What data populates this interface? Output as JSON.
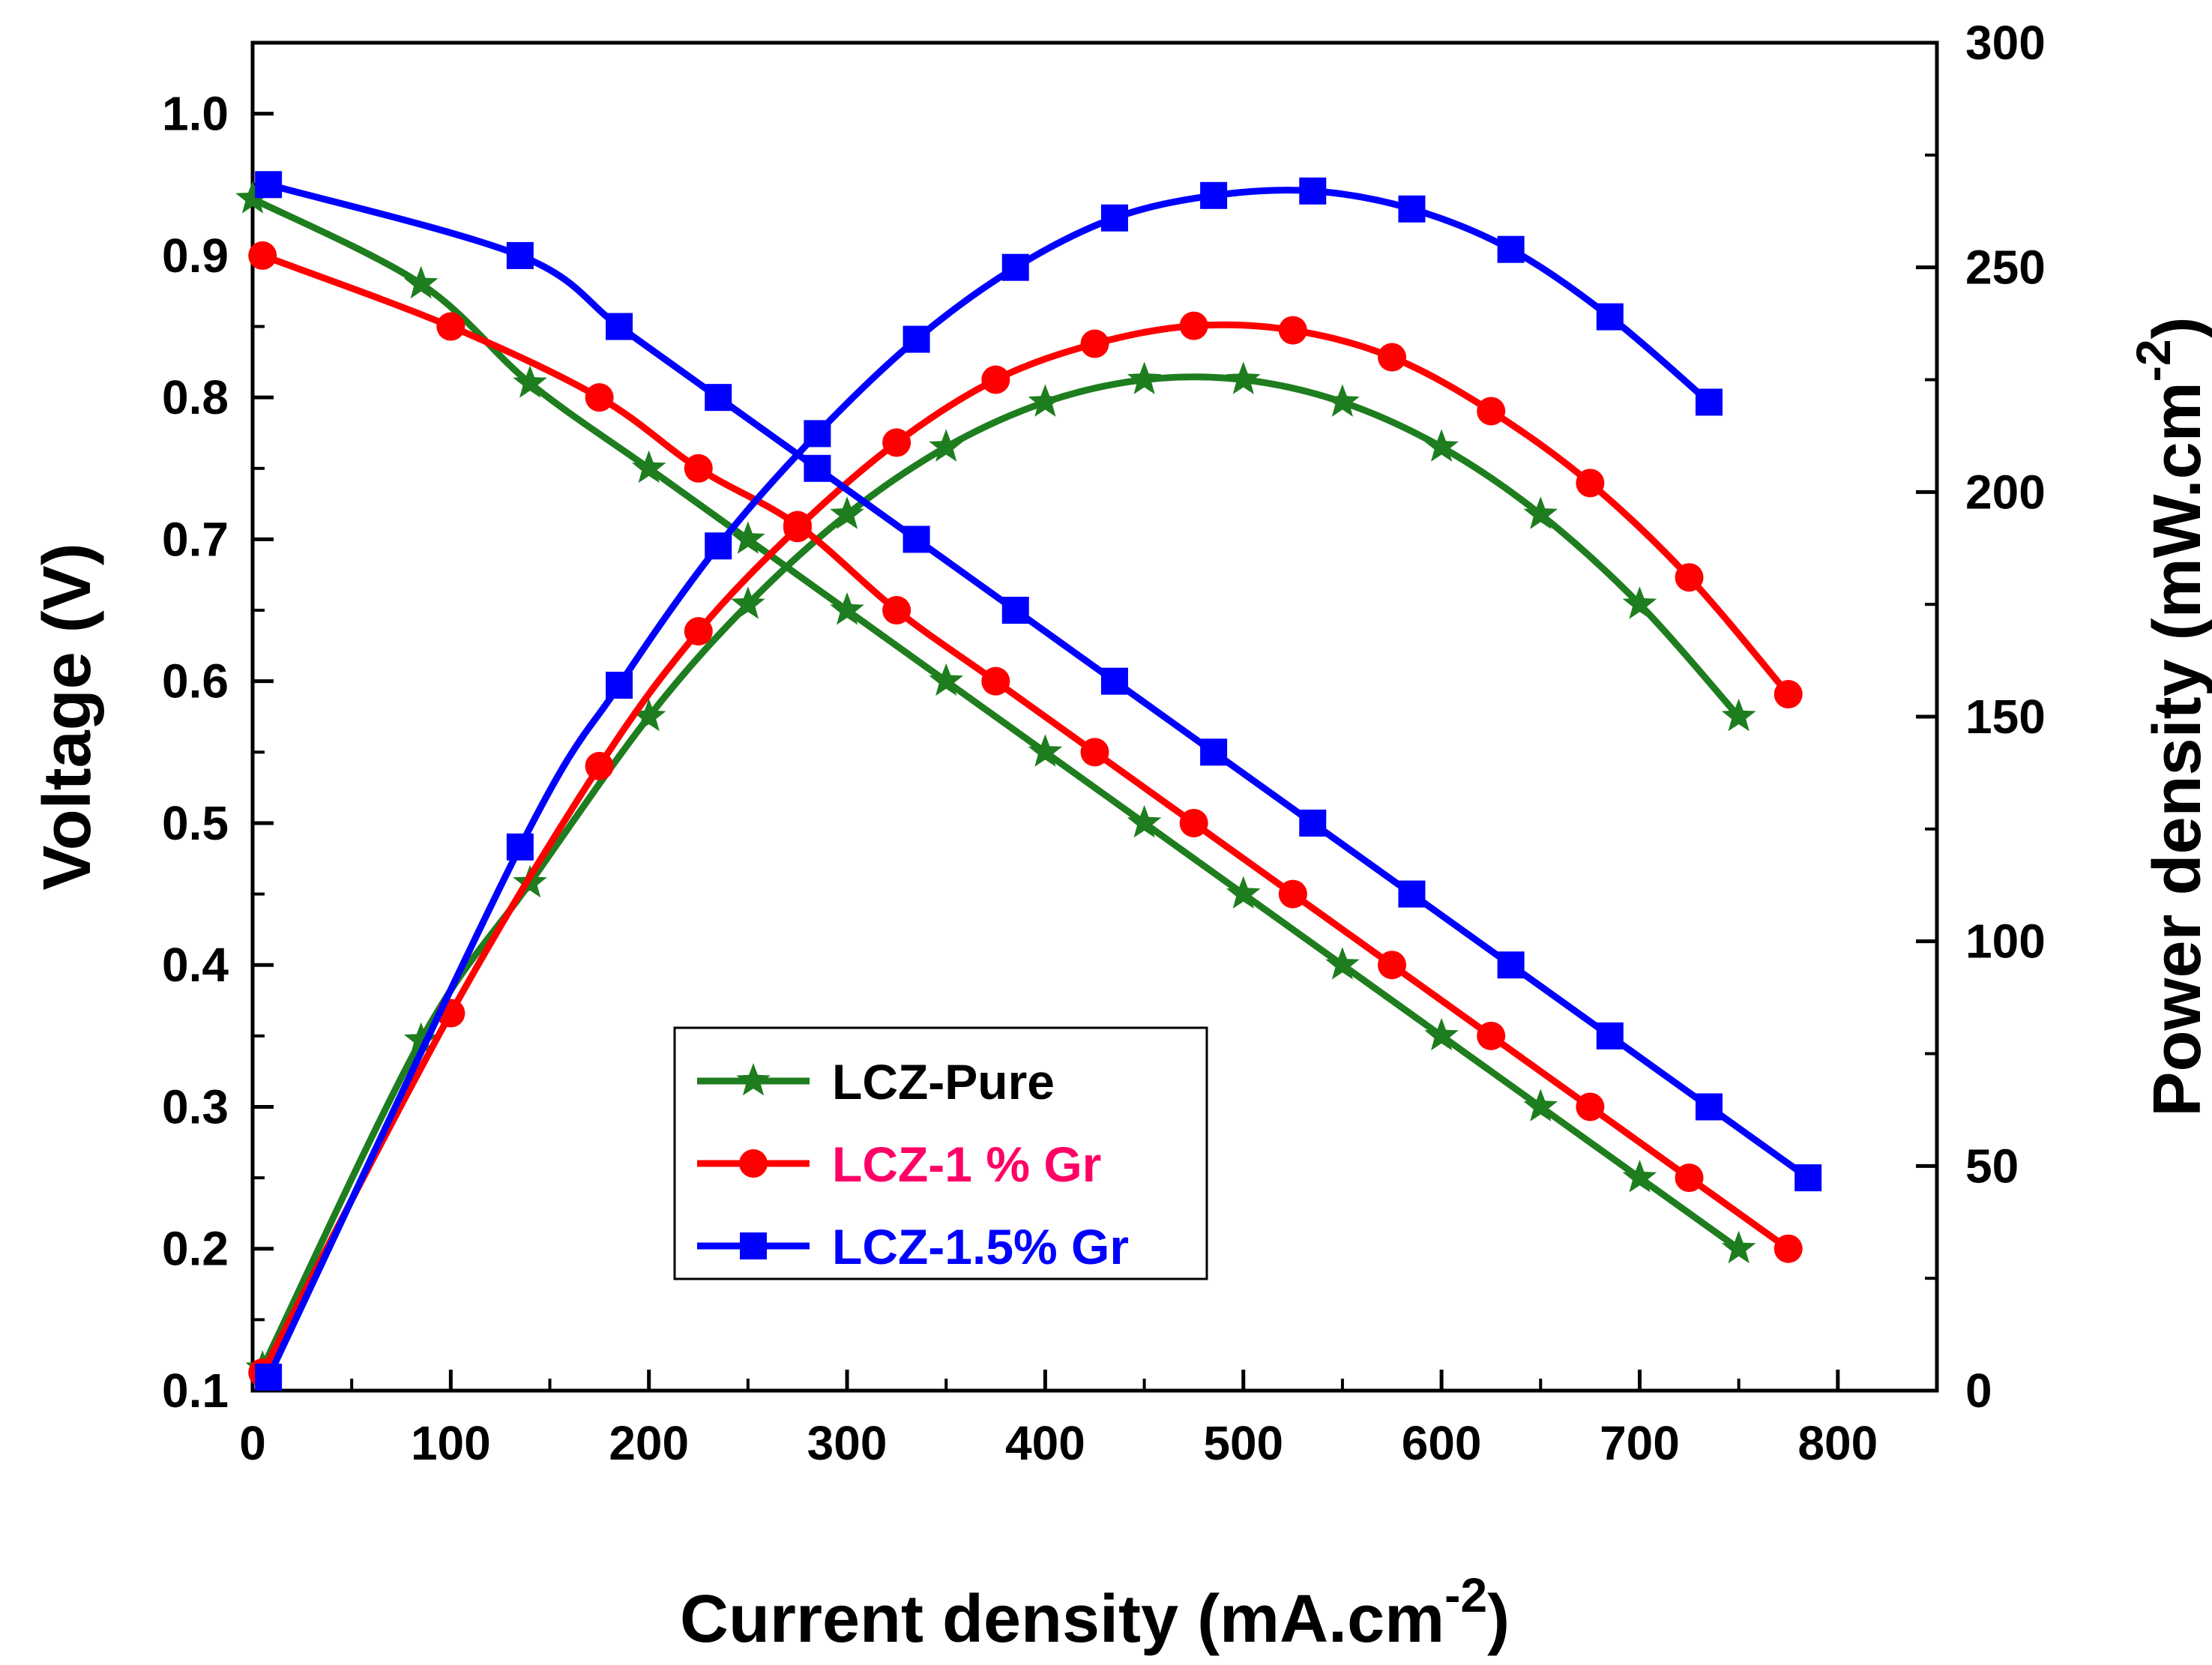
{
  "chart_data": {
    "type": "line",
    "xlabel": "Current density (mA.cm",
    "xlabel_sup": "-2",
    "xlabel_end": ")",
    "ylabel": "Voltage (V)",
    "y2label": "Power density (mW.cm",
    "y2label_sup": "-2",
    "y2label_end": ")",
    "xlim": [
      0,
      850
    ],
    "ylim": [
      0.1,
      1.05
    ],
    "y2lim": [
      0,
      300
    ],
    "xticks": [
      "0",
      "100",
      "200",
      "300",
      "400",
      "500",
      "600",
      "700",
      "800"
    ],
    "yticks": [
      "0.1",
      "0.2",
      "0.3",
      "0.4",
      "0.5",
      "0.6",
      "0.7",
      "0.8",
      "0.9",
      "1.0"
    ],
    "y2ticks": [
      "0",
      "50",
      "100",
      "150",
      "200",
      "250",
      "300"
    ],
    "legend": {
      "position": "lower-center",
      "entries": [
        "LCZ-Pure",
        "LCZ-1 % Gr",
        "LCZ-1.5% Gr"
      ]
    },
    "series": [
      {
        "name": "LCZ-Pure",
        "color": "#1e7d1e",
        "marker": "star",
        "voltage": {
          "x": [
            0,
            85,
            140,
            200,
            250,
            300,
            350,
            400,
            450,
            500,
            550,
            600,
            650,
            700,
            750
          ],
          "y": [
            0.94,
            0.88,
            0.81,
            0.75,
            0.7,
            0.65,
            0.6,
            0.55,
            0.5,
            0.45,
            0.4,
            0.35,
            0.3,
            0.25,
            0.2
          ]
        },
        "power": {
          "x": [
            5,
            85,
            140,
            200,
            250,
            300,
            350,
            400,
            450,
            500,
            550,
            600,
            650,
            700,
            750
          ],
          "y": [
            5,
            78,
            113,
            150,
            175,
            195,
            210,
            220,
            225,
            225,
            220,
            210,
            195,
            175,
            150
          ]
        }
      },
      {
        "name": "LCZ-1 % Gr",
        "color": "#ff0000",
        "marker": "circle",
        "voltage": {
          "x": [
            5,
            100,
            175,
            225,
            275,
            325,
            375,
            425,
            475,
            525,
            575,
            625,
            675,
            725,
            775
          ],
          "y": [
            0.9,
            0.85,
            0.8,
            0.75,
            0.71,
            0.65,
            0.6,
            0.55,
            0.5,
            0.45,
            0.4,
            0.35,
            0.3,
            0.25,
            0.2
          ]
        },
        "power": {
          "x": [
            5,
            100,
            175,
            225,
            275,
            325,
            375,
            425,
            475,
            525,
            575,
            625,
            675,
            725,
            775
          ],
          "y": [
            4,
            84,
            139,
            169,
            192,
            211,
            225,
            233,
            237,
            236,
            230,
            218,
            202,
            181,
            155
          ]
        }
      },
      {
        "name": "LCZ-1.5% Gr",
        "color": "#0000ff",
        "marker": "square",
        "voltage": {
          "x": [
            8,
            135,
            185,
            235,
            285,
            335,
            385,
            435,
            485,
            535,
            585,
            635,
            685,
            735,
            785
          ],
          "y": [
            0.95,
            0.9,
            0.85,
            0.8,
            0.75,
            0.7,
            0.65,
            0.6,
            0.55,
            0.5,
            0.45,
            0.4,
            0.35,
            0.3,
            0.25
          ]
        },
        "power": {
          "x": [
            8,
            135,
            185,
            235,
            285,
            335,
            385,
            435,
            485,
            535,
            585,
            635,
            685,
            735
          ],
          "y": [
            3,
            121,
            157,
            188,
            213,
            234,
            250,
            261,
            266,
            267,
            263,
            254,
            239,
            220
          ]
        }
      }
    ]
  }
}
